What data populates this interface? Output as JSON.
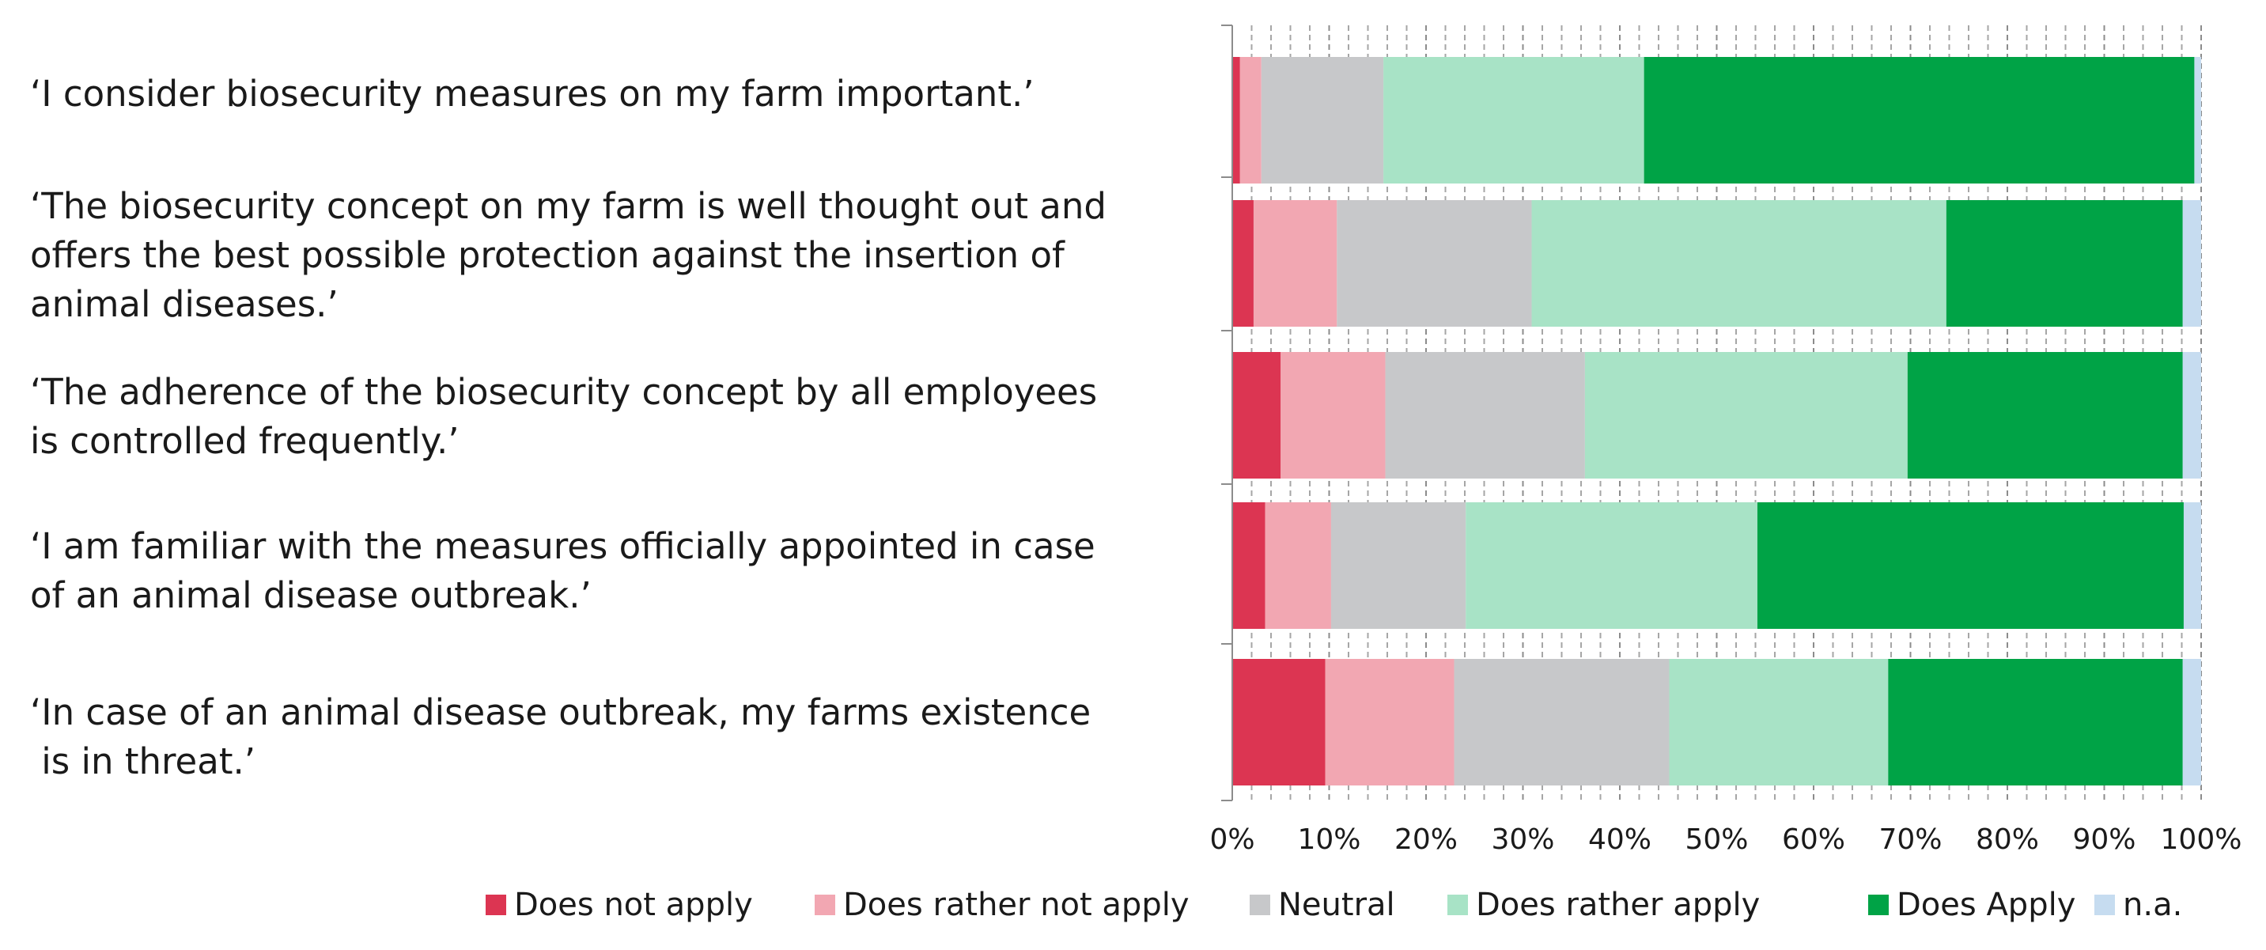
{
  "chart_data": {
    "type": "bar",
    "orientation": "horizontal",
    "stacked": "percent",
    "categories": [
      [
        "‘I consider biosecurity measures on my farm important.’"
      ],
      [
        "‘The biosecurity concept on my farm is well thought out and",
        "offers the best possible protection against the insertion of",
        "animal diseases.’"
      ],
      [
        "‘The adherence of the biosecurity concept by all employees",
        "is controlled frequently.’"
      ],
      [
        "‘I am familiar with the measures officially appointed in case",
        "of an animal disease outbreak.’"
      ],
      [
        "‘In case of an animal disease outbreak, my farms existence",
        " is in threat.’"
      ]
    ],
    "series": [
      {
        "name": "Does not apply",
        "color": "#dc3552",
        "values": [
          0.8,
          2.2,
          5.0,
          3.4,
          9.6
        ]
      },
      {
        "name": "Does rather not apply",
        "color": "#f2a7b2",
        "values": [
          2.2,
          8.6,
          10.8,
          6.8,
          13.3
        ]
      },
      {
        "name": "Neutral",
        "color": "#c7c8ca",
        "values": [
          12.6,
          20.1,
          20.6,
          13.9,
          22.2
        ]
      },
      {
        "name": "Does rather apply",
        "color": "#a8e3c6",
        "values": [
          26.9,
          42.8,
          33.3,
          30.1,
          22.6
        ]
      },
      {
        "name": "Does Apply",
        "color": "#00a346",
        "values": [
          56.8,
          24.4,
          28.4,
          44.0,
          30.4
        ]
      },
      {
        "name": "n.a.",
        "color": "#c6dcf0",
        "values": [
          0.7,
          1.9,
          1.9,
          1.8,
          1.9
        ]
      }
    ],
    "xlim": [
      0,
      100
    ],
    "xticks": [
      "0%",
      "10%",
      "20%",
      "30%",
      "40%",
      "50%",
      "60%",
      "70%",
      "80%",
      "90%",
      "100%"
    ],
    "xlabel": "",
    "ylabel": "",
    "grid": "vertical dashed lines every 2%",
    "legend": "bottom"
  }
}
